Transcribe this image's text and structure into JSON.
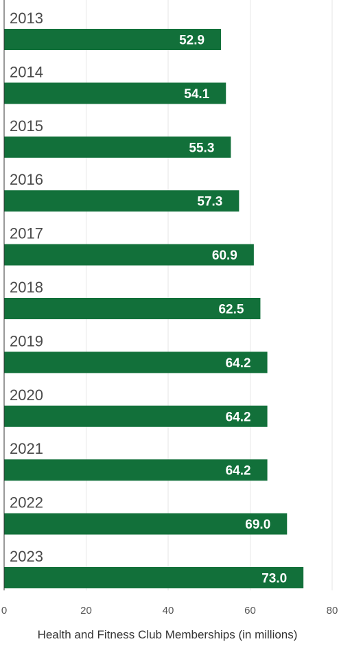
{
  "chart_data": {
    "type": "bar",
    "orientation": "horizontal",
    "categories": [
      "2013",
      "2014",
      "2015",
      "2016",
      "2017",
      "2018",
      "2019",
      "2020",
      "2021",
      "2022",
      "2023"
    ],
    "values": [
      52.9,
      54.1,
      55.3,
      57.3,
      60.9,
      62.5,
      64.2,
      64.2,
      64.2,
      69.0,
      73.0
    ],
    "value_labels": [
      "52.9",
      "54.1",
      "55.3",
      "57.3",
      "60.9",
      "62.5",
      "64.2",
      "64.2",
      "64.2",
      "69.0",
      "73.0"
    ],
    "xlabel": "Health and Fitness Club Memberships (in millions)",
    "xlim": [
      0,
      80
    ],
    "xticks": [
      "0",
      "20",
      "40",
      "60",
      "80"
    ],
    "grid": true,
    "colors": {
      "bar": "#12703a"
    }
  }
}
